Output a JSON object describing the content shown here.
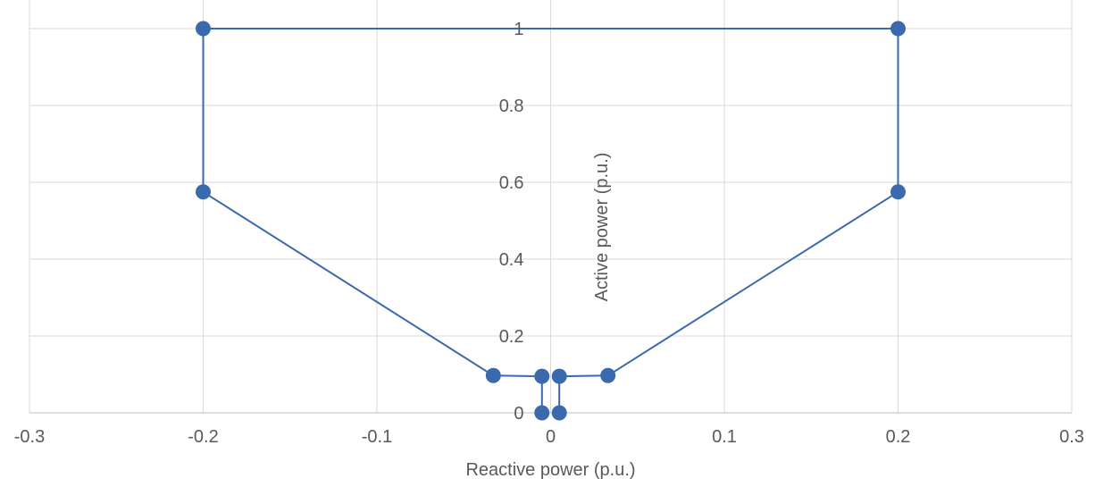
{
  "chart_data": {
    "type": "scatter",
    "title": "",
    "xlabel": "Reactive power (p.u.)",
    "ylabel": "Active power (p.u.)",
    "xlim": [
      -0.3,
      0.3
    ],
    "ylim": [
      0,
      1
    ],
    "x_ticks": [
      "-0.3",
      "-0.2",
      "-0.1",
      "0",
      "0.1",
      "0.2",
      "0.3"
    ],
    "y_ticks": [
      "0",
      "0.2",
      "0.4",
      "0.6",
      "0.8",
      "1"
    ],
    "grid": true,
    "series": [
      {
        "connected": true,
        "color": "#3a6aad",
        "points": [
          {
            "x": -0.005,
            "y": 0
          },
          {
            "x": -0.005,
            "y": 0.095
          },
          {
            "x": -0.033,
            "y": 0.097
          },
          {
            "x": -0.2,
            "y": 0.575
          },
          {
            "x": -0.2,
            "y": 1
          },
          {
            "x": 0.2,
            "y": 1
          },
          {
            "x": 0.2,
            "y": 0.575
          },
          {
            "x": 0.033,
            "y": 0.097
          },
          {
            "x": 0.005,
            "y": 0.095
          },
          {
            "x": 0.005,
            "y": 0
          }
        ]
      }
    ]
  }
}
